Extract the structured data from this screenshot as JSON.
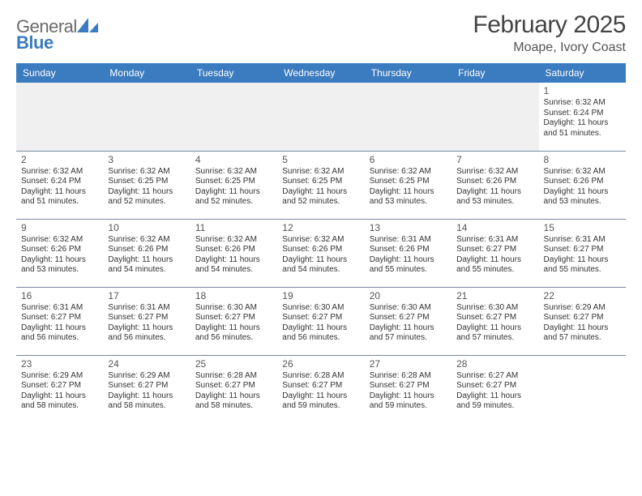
{
  "brand": {
    "word1": "General",
    "word2": "Blue",
    "mark_color": "#3b7bbf",
    "text_color": "#6a6a6a"
  },
  "header": {
    "month_title": "February 2025",
    "location": "Moape, Ivory Coast"
  },
  "style": {
    "header_bg": "#3b7bbf",
    "header_fg": "#ffffff",
    "cell_border": "#7a8aa0",
    "body_fg": "#333333",
    "muted_row_bg": "#f0f0f0",
    "page_bg": "#ffffff",
    "title_color": "#444444",
    "day_label_fontsize": 12,
    "cell_fontsize": 10,
    "month_title_fontsize": 30,
    "location_fontsize": 16
  },
  "weekdays": [
    "Sunday",
    "Monday",
    "Tuesday",
    "Wednesday",
    "Thursday",
    "Friday",
    "Saturday"
  ],
  "weeks": [
    [
      null,
      null,
      null,
      null,
      null,
      null,
      {
        "n": "1",
        "sr": "Sunrise: 6:32 AM",
        "ss": "Sunset: 6:24 PM",
        "dl": "Daylight: 11 hours and 51 minutes."
      }
    ],
    [
      {
        "n": "2",
        "sr": "Sunrise: 6:32 AM",
        "ss": "Sunset: 6:24 PM",
        "dl": "Daylight: 11 hours and 51 minutes."
      },
      {
        "n": "3",
        "sr": "Sunrise: 6:32 AM",
        "ss": "Sunset: 6:25 PM",
        "dl": "Daylight: 11 hours and 52 minutes."
      },
      {
        "n": "4",
        "sr": "Sunrise: 6:32 AM",
        "ss": "Sunset: 6:25 PM",
        "dl": "Daylight: 11 hours and 52 minutes."
      },
      {
        "n": "5",
        "sr": "Sunrise: 6:32 AM",
        "ss": "Sunset: 6:25 PM",
        "dl": "Daylight: 11 hours and 52 minutes."
      },
      {
        "n": "6",
        "sr": "Sunrise: 6:32 AM",
        "ss": "Sunset: 6:25 PM",
        "dl": "Daylight: 11 hours and 53 minutes."
      },
      {
        "n": "7",
        "sr": "Sunrise: 6:32 AM",
        "ss": "Sunset: 6:26 PM",
        "dl": "Daylight: 11 hours and 53 minutes."
      },
      {
        "n": "8",
        "sr": "Sunrise: 6:32 AM",
        "ss": "Sunset: 6:26 PM",
        "dl": "Daylight: 11 hours and 53 minutes."
      }
    ],
    [
      {
        "n": "9",
        "sr": "Sunrise: 6:32 AM",
        "ss": "Sunset: 6:26 PM",
        "dl": "Daylight: 11 hours and 53 minutes."
      },
      {
        "n": "10",
        "sr": "Sunrise: 6:32 AM",
        "ss": "Sunset: 6:26 PM",
        "dl": "Daylight: 11 hours and 54 minutes."
      },
      {
        "n": "11",
        "sr": "Sunrise: 6:32 AM",
        "ss": "Sunset: 6:26 PM",
        "dl": "Daylight: 11 hours and 54 minutes."
      },
      {
        "n": "12",
        "sr": "Sunrise: 6:32 AM",
        "ss": "Sunset: 6:26 PM",
        "dl": "Daylight: 11 hours and 54 minutes."
      },
      {
        "n": "13",
        "sr": "Sunrise: 6:31 AM",
        "ss": "Sunset: 6:26 PM",
        "dl": "Daylight: 11 hours and 55 minutes."
      },
      {
        "n": "14",
        "sr": "Sunrise: 6:31 AM",
        "ss": "Sunset: 6:27 PM",
        "dl": "Daylight: 11 hours and 55 minutes."
      },
      {
        "n": "15",
        "sr": "Sunrise: 6:31 AM",
        "ss": "Sunset: 6:27 PM",
        "dl": "Daylight: 11 hours and 55 minutes."
      }
    ],
    [
      {
        "n": "16",
        "sr": "Sunrise: 6:31 AM",
        "ss": "Sunset: 6:27 PM",
        "dl": "Daylight: 11 hours and 56 minutes."
      },
      {
        "n": "17",
        "sr": "Sunrise: 6:31 AM",
        "ss": "Sunset: 6:27 PM",
        "dl": "Daylight: 11 hours and 56 minutes."
      },
      {
        "n": "18",
        "sr": "Sunrise: 6:30 AM",
        "ss": "Sunset: 6:27 PM",
        "dl": "Daylight: 11 hours and 56 minutes."
      },
      {
        "n": "19",
        "sr": "Sunrise: 6:30 AM",
        "ss": "Sunset: 6:27 PM",
        "dl": "Daylight: 11 hours and 56 minutes."
      },
      {
        "n": "20",
        "sr": "Sunrise: 6:30 AM",
        "ss": "Sunset: 6:27 PM",
        "dl": "Daylight: 11 hours and 57 minutes."
      },
      {
        "n": "21",
        "sr": "Sunrise: 6:30 AM",
        "ss": "Sunset: 6:27 PM",
        "dl": "Daylight: 11 hours and 57 minutes."
      },
      {
        "n": "22",
        "sr": "Sunrise: 6:29 AM",
        "ss": "Sunset: 6:27 PM",
        "dl": "Daylight: 11 hours and 57 minutes."
      }
    ],
    [
      {
        "n": "23",
        "sr": "Sunrise: 6:29 AM",
        "ss": "Sunset: 6:27 PM",
        "dl": "Daylight: 11 hours and 58 minutes."
      },
      {
        "n": "24",
        "sr": "Sunrise: 6:29 AM",
        "ss": "Sunset: 6:27 PM",
        "dl": "Daylight: 11 hours and 58 minutes."
      },
      {
        "n": "25",
        "sr": "Sunrise: 6:28 AM",
        "ss": "Sunset: 6:27 PM",
        "dl": "Daylight: 11 hours and 58 minutes."
      },
      {
        "n": "26",
        "sr": "Sunrise: 6:28 AM",
        "ss": "Sunset: 6:27 PM",
        "dl": "Daylight: 11 hours and 59 minutes."
      },
      {
        "n": "27",
        "sr": "Sunrise: 6:28 AM",
        "ss": "Sunset: 6:27 PM",
        "dl": "Daylight: 11 hours and 59 minutes."
      },
      {
        "n": "28",
        "sr": "Sunrise: 6:27 AM",
        "ss": "Sunset: 6:27 PM",
        "dl": "Daylight: 11 hours and 59 minutes."
      },
      null
    ]
  ]
}
